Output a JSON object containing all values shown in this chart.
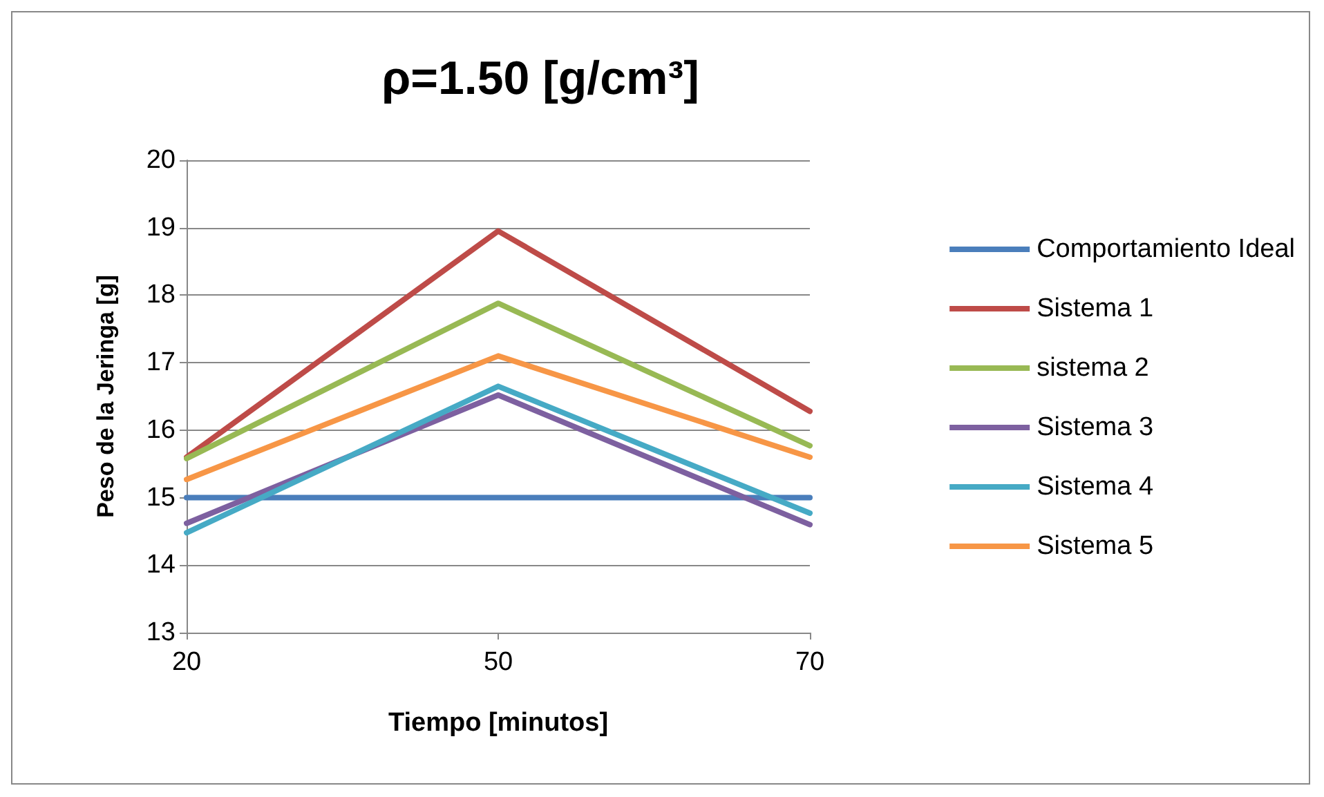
{
  "chart_data": {
    "type": "line",
    "title": "ρ=1.50 [g/cm³]",
    "xlabel": "Tiempo [minutos]",
    "ylabel": "Peso de la Jeringa [g]",
    "categories": [
      "20",
      "50",
      "70"
    ],
    "series": [
      {
        "name": "Comportamiento Ideal",
        "color": "#4a7ebb",
        "values": [
          15,
          15,
          15
        ]
      },
      {
        "name": "Sistema 1",
        "color": "#be4b48",
        "values": [
          15.6,
          18.95,
          16.28
        ]
      },
      {
        "name": "sistema 2",
        "color": "#98b954",
        "values": [
          15.58,
          17.88,
          15.77
        ]
      },
      {
        "name": "Sistema 3",
        "color": "#7d60a0",
        "values": [
          14.62,
          16.52,
          14.6
        ]
      },
      {
        "name": "Sistema 4",
        "color": "#46aac5",
        "values": [
          14.48,
          16.65,
          14.77
        ]
      },
      {
        "name": "Sistema 5",
        "color": "#f79646",
        "values": [
          15.27,
          17.1,
          15.6
        ]
      }
    ],
    "ylim": [
      13,
      20
    ],
    "yticks": [
      13,
      14,
      15,
      16,
      17,
      18,
      19,
      20
    ],
    "grid": "y",
    "legend": "right",
    "marker": "none",
    "line_style": "solid"
  }
}
